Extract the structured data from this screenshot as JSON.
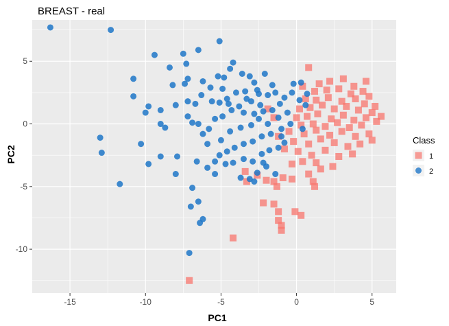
{
  "chart_data": {
    "type": "scatter",
    "title": "BREAST - real",
    "xlabel": "PC1",
    "ylabel": "PC2",
    "xlim": [
      -17.5,
      6.6
    ],
    "ylim": [
      -13.5,
      8.3
    ],
    "x_ticks": [
      -15,
      -10,
      -5,
      0,
      5
    ],
    "y_ticks": [
      -10,
      -5,
      0,
      5
    ],
    "x_tick_labels": [
      "-15",
      "-10",
      "-5",
      "0",
      "5"
    ],
    "y_tick_labels": [
      "-10",
      "-5",
      "0",
      "5"
    ],
    "grid": true,
    "legend": {
      "title": "Class",
      "position": "right"
    },
    "series": [
      {
        "name": "1",
        "marker": "square",
        "color": "#F8766D",
        "points": [
          [
            0.8,
            4.5
          ],
          [
            1.5,
            3.2
          ],
          [
            2.2,
            3.4
          ],
          [
            3.1,
            3.6
          ],
          [
            3.8,
            3.0
          ],
          [
            4.6,
            3.4
          ],
          [
            0.4,
            3.0
          ],
          [
            1.2,
            2.6
          ],
          [
            2.0,
            2.7
          ],
          [
            2.8,
            2.8
          ],
          [
            3.6,
            2.4
          ],
          [
            4.4,
            2.6
          ],
          [
            4.8,
            2.2
          ],
          [
            0.6,
            2.0
          ],
          [
            1.3,
            1.9
          ],
          [
            2.1,
            2.1
          ],
          [
            3.0,
            1.8
          ],
          [
            3.9,
            2.0
          ],
          [
            4.5,
            1.6
          ],
          [
            5.2,
            1.4
          ],
          [
            0.2,
            1.2
          ],
          [
            0.9,
            1.3
          ],
          [
            1.7,
            1.5
          ],
          [
            2.5,
            1.2
          ],
          [
            3.3,
            1.4
          ],
          [
            4.1,
            1.1
          ],
          [
            5.0,
            0.9
          ],
          [
            5.6,
            0.6
          ],
          [
            0.0,
            0.5
          ],
          [
            0.7,
            0.6
          ],
          [
            1.4,
            0.8
          ],
          [
            2.3,
            0.4
          ],
          [
            3.1,
            0.7
          ],
          [
            3.8,
            0.3
          ],
          [
            4.6,
            0.5
          ],
          [
            5.3,
            0.2
          ],
          [
            0.3,
            -0.1
          ],
          [
            1.1,
            0.0
          ],
          [
            1.9,
            -0.2
          ],
          [
            2.7,
            0.1
          ],
          [
            3.5,
            -0.3
          ],
          [
            4.3,
            -0.1
          ],
          [
            -0.5,
            -0.6
          ],
          [
            0.5,
            -0.8
          ],
          [
            1.3,
            -0.5
          ],
          [
            2.2,
            -0.9
          ],
          [
            3.0,
            -0.6
          ],
          [
            3.9,
            -1.0
          ],
          [
            4.8,
            -0.8
          ],
          [
            5.0,
            -1.3
          ],
          [
            -0.2,
            -1.4
          ],
          [
            0.8,
            -1.6
          ],
          [
            1.6,
            -1.2
          ],
          [
            2.5,
            -1.5
          ],
          [
            3.4,
            -1.8
          ],
          [
            4.2,
            -1.6
          ],
          [
            0.1,
            -2.2
          ],
          [
            1.0,
            -2.5
          ],
          [
            1.9,
            -2.1
          ],
          [
            2.8,
            -2.6
          ],
          [
            3.7,
            -2.4
          ],
          [
            -0.8,
            -2.0
          ],
          [
            -1.2,
            -1.0
          ],
          [
            -1.5,
            0.5
          ],
          [
            -1.9,
            1.2
          ],
          [
            0.4,
            -3.0
          ],
          [
            1.3,
            -3.1
          ],
          [
            2.4,
            -3.4
          ],
          [
            -0.3,
            -3.2
          ],
          [
            1.6,
            -3.6
          ],
          [
            0.8,
            -4.0
          ],
          [
            1.1,
            -4.6
          ],
          [
            1.2,
            -5.0
          ],
          [
            -0.3,
            -4.4
          ],
          [
            -0.9,
            -4.3
          ],
          [
            -1.5,
            -4.6
          ],
          [
            -3.4,
            -3.8
          ],
          [
            -1.3,
            -5.0
          ],
          [
            -2.0,
            -4.5
          ],
          [
            -2.6,
            -4.1
          ],
          [
            -3.3,
            -4.6
          ],
          [
            -2.2,
            -6.3
          ],
          [
            -1.5,
            -6.4
          ],
          [
            -1.2,
            -7.0
          ],
          [
            -1.2,
            -7.7
          ],
          [
            -1.0,
            -8.1
          ],
          [
            -1.0,
            -8.5
          ],
          [
            -0.1,
            -7.0
          ],
          [
            0.3,
            -7.3
          ],
          [
            -4.2,
            -9.1
          ],
          [
            -7.1,
            -12.5
          ]
        ]
      },
      {
        "name": "2",
        "marker": "circle",
        "color": "#1F77C8",
        "points": [
          [
            -16.3,
            7.7
          ],
          [
            -12.3,
            7.5
          ],
          [
            -9.4,
            5.5
          ],
          [
            -7.5,
            5.6
          ],
          [
            -7.3,
            4.8
          ],
          [
            -6.5,
            5.9
          ],
          [
            -5.1,
            6.6
          ],
          [
            -8.4,
            4.5
          ],
          [
            -10.8,
            3.6
          ],
          [
            -10.8,
            2.2
          ],
          [
            -8.2,
            3.1
          ],
          [
            -7.2,
            3.6
          ],
          [
            -7.4,
            3.2
          ],
          [
            -6.2,
            3.4
          ],
          [
            -5.2,
            3.8
          ],
          [
            -4.8,
            3.7
          ],
          [
            -4.2,
            4.9
          ],
          [
            -4.4,
            4.4
          ],
          [
            -3.6,
            4.0
          ],
          [
            -3.1,
            3.8
          ],
          [
            -2.8,
            3.3
          ],
          [
            -2.1,
            4.0
          ],
          [
            -2.5,
            2.4
          ],
          [
            -3.4,
            2.6
          ],
          [
            -4.0,
            2.5
          ],
          [
            -4.9,
            2.8
          ],
          [
            -5.7,
            2.9
          ],
          [
            -6.3,
            2.3
          ],
          [
            -6.7,
            1.6
          ],
          [
            -7.2,
            1.8
          ],
          [
            -8.0,
            1.5
          ],
          [
            -9.0,
            1.1
          ],
          [
            -9.8,
            1.4
          ],
          [
            -10.0,
            0.9
          ],
          [
            -9.0,
            0.0
          ],
          [
            -8.7,
            -0.3
          ],
          [
            -7.2,
            0.6
          ],
          [
            -6.5,
            0.0
          ],
          [
            -6.9,
            0.1
          ],
          [
            -5.6,
            1.8
          ],
          [
            -5.1,
            1.7
          ],
          [
            -4.5,
            1.6
          ],
          [
            -3.8,
            1.4
          ],
          [
            -3.0,
            1.8
          ],
          [
            -2.4,
            1.5
          ],
          [
            -1.9,
            2.3
          ],
          [
            -1.4,
            2.5
          ],
          [
            -0.8,
            2.1
          ],
          [
            -0.2,
            3.2
          ],
          [
            0.3,
            3.3
          ],
          [
            -0.3,
            2.5
          ],
          [
            -1.1,
            1.6
          ],
          [
            -1.6,
            1.1
          ],
          [
            -2.2,
            1.0
          ],
          [
            -2.8,
            0.8
          ],
          [
            -3.5,
            0.9
          ],
          [
            -4.3,
            1.1
          ],
          [
            -4.9,
            0.6
          ],
          [
            -5.4,
            0.4
          ],
          [
            -5.8,
            -0.4
          ],
          [
            -6.2,
            -0.8
          ],
          [
            -5.9,
            -1.6
          ],
          [
            -5.0,
            -1.3
          ],
          [
            -4.4,
            -0.6
          ],
          [
            -3.7,
            -0.3
          ],
          [
            -3.0,
            -0.1
          ],
          [
            -2.5,
            0.4
          ],
          [
            -1.9,
            0.0
          ],
          [
            -1.2,
            0.5
          ],
          [
            -0.6,
            0.9
          ],
          [
            0.2,
            1.9
          ],
          [
            0.6,
            1.5
          ],
          [
            0.7,
            2.4
          ],
          [
            -0.4,
            0.0
          ],
          [
            -1.0,
            -0.4
          ],
          [
            -1.7,
            -0.8
          ],
          [
            -2.3,
            -1.0
          ],
          [
            -2.9,
            -1.4
          ],
          [
            -3.5,
            -1.6
          ],
          [
            -4.1,
            -1.9
          ],
          [
            -4.6,
            -2.2
          ],
          [
            -5.1,
            -2.5
          ],
          [
            -5.4,
            -3.0
          ],
          [
            -4.7,
            -3.2
          ],
          [
            -4.2,
            -3.1
          ],
          [
            -3.5,
            -2.8
          ],
          [
            -2.9,
            -3.0
          ],
          [
            -2.3,
            -2.4
          ],
          [
            -1.8,
            -2.1
          ],
          [
            -1.2,
            -1.9
          ],
          [
            -2.0,
            -3.4
          ],
          [
            -2.6,
            -3.9
          ],
          [
            -3.1,
            -4.4
          ],
          [
            -2.8,
            -4.6
          ],
          [
            -3.7,
            -4.3
          ],
          [
            -5.4,
            -4.0
          ],
          [
            -5.9,
            -3.5
          ],
          [
            -6.6,
            -3.0
          ],
          [
            -6.9,
            -5.1
          ],
          [
            -7.9,
            -2.6
          ],
          [
            -9.0,
            -2.6
          ],
          [
            -9.8,
            -3.2
          ],
          [
            -8.0,
            -4.0
          ],
          [
            -10.3,
            -1.6
          ],
          [
            -12.9,
            -2.3
          ],
          [
            -13.0,
            -1.1
          ],
          [
            -11.7,
            -4.8
          ],
          [
            -6.5,
            -6.2
          ],
          [
            -7.0,
            -6.6
          ],
          [
            -6.2,
            -7.6
          ],
          [
            -6.4,
            -7.9
          ],
          [
            -7.1,
            -10.3
          ],
          [
            -1.4,
            -4.0
          ],
          [
            -2.2,
            -3.1
          ],
          [
            -1.0,
            -1.0
          ],
          [
            0.4,
            -0.4
          ],
          [
            -0.8,
            -1.5
          ],
          [
            -3.3,
            2.0
          ],
          [
            -4.6,
            2.0
          ],
          [
            -2.6,
            2.7
          ],
          [
            -1.6,
            3.1
          ]
        ]
      }
    ]
  }
}
